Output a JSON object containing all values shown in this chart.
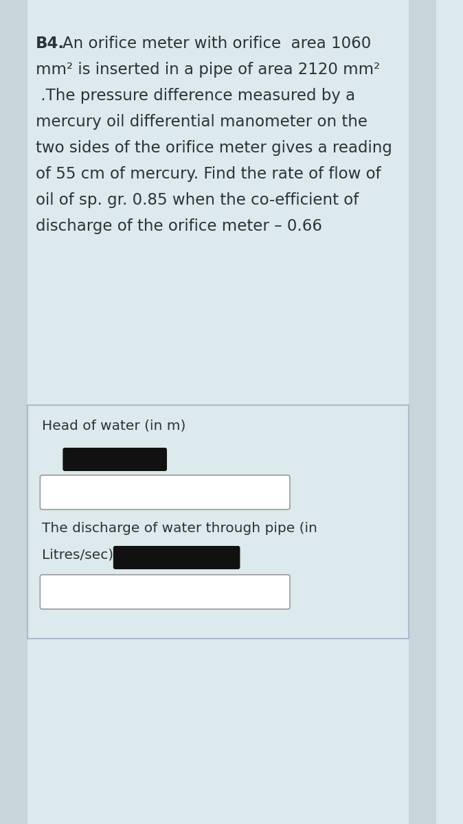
{
  "bg_color": "#dce9ed",
  "side_strip_color": "#c8d6db",
  "text_color": "#2c3336",
  "font_size_main": 16.5,
  "font_size_label": 14.5,
  "redacted_color": "#111111",
  "input_box_color": "#ffffff",
  "input_box_border": "#999999",
  "title_bold": "B4.",
  "line1_rest": "   An orifice meter with orifice  area 1060",
  "line2": "mm² is inserted in a pipe of area 2120 mm²",
  "line3": " .The pressure difference measured by a",
  "line4": "mercury oil differential manometer on the",
  "line5": "two sides of the orifice meter gives a reading",
  "line6": "of 55 cm of mercury. Find the rate of flow of",
  "line7": "oil of sp. gr. 0.85 when the co-efficient of",
  "line8": "discharge of the orifice meter – 0.66",
  "label1": "Head of water (in m)",
  "label2a": "The discharge of water through pipe (in",
  "label2b": "Litres/sec)"
}
